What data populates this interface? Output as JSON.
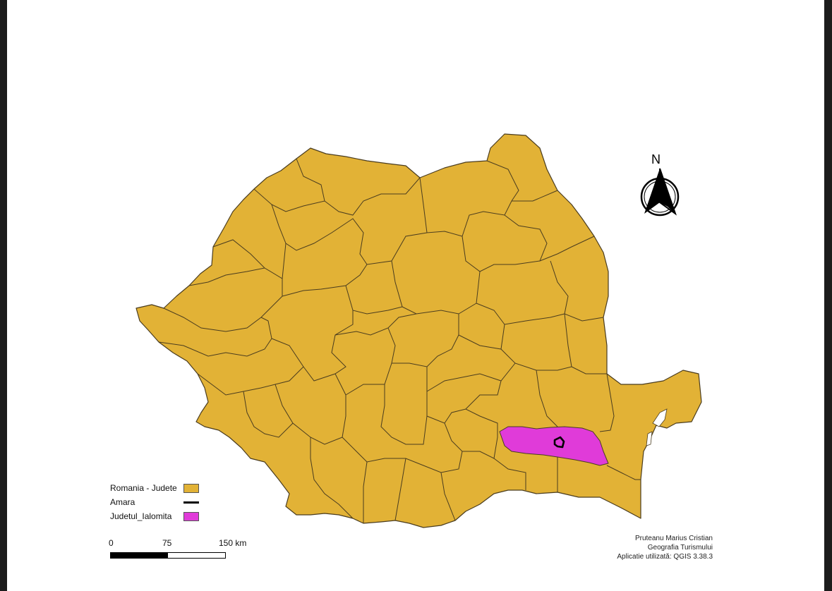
{
  "colors": {
    "judete_fill": "#e2b236",
    "judete_stroke": "#4a3c1f",
    "ialomita_fill": "#e03bd9",
    "amara_stroke": "#000000",
    "page_bg": "#ffffff"
  },
  "north_arrow": {
    "letter": "N",
    "icon": "north-arrow-icon"
  },
  "legend": {
    "items": [
      {
        "label": "Romania - Judete",
        "symbol": "fill",
        "color": "#e2b236"
      },
      {
        "label": "Amara",
        "symbol": "line",
        "color": "#000000"
      },
      {
        "label": "Judetul_Ialomita",
        "symbol": "fill",
        "color": "#e03bd9"
      }
    ]
  },
  "scale_bar": {
    "ticks": [
      "0",
      "75",
      "150 km"
    ]
  },
  "credits": {
    "author": "Pruteanu Marius Cristian",
    "course": "Geografia Turismului",
    "software": "Aplicatie utilizată: QGIS 3.38.3"
  }
}
